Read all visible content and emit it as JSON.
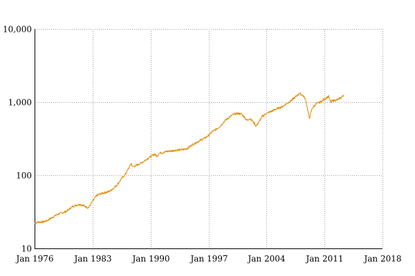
{
  "chart_data": {
    "type": "line",
    "title": "",
    "xlabel": "",
    "ylabel": "",
    "x_scale": "time",
    "y_scale": "log",
    "xlim": [
      "1976-01",
      "2018-01"
    ],
    "ylim": [
      10,
      10000
    ],
    "grid": true,
    "legend": "none",
    "x_ticks": [
      "Jan 1976",
      "Jan 1983",
      "Jan 1990",
      "Jan 1997",
      "Jan 2004",
      "Jan 2011",
      "Jan 2018"
    ],
    "y_ticks": [
      "10",
      "100",
      "1,000",
      "10,000"
    ],
    "y_tick_values": [
      10,
      100,
      1000,
      10000
    ],
    "line_color": "#e08b00",
    "series": [
      {
        "x": [
          "1976-01",
          "1976-07",
          "1977-01",
          "1977-07",
          "1978-01",
          "1978-07",
          "1979-01",
          "1979-07",
          "1980-01",
          "1980-07",
          "1981-01",
          "1981-07",
          "1982-01",
          "1982-07",
          "1983-01",
          "1983-07",
          "1984-01",
          "1984-07",
          "1985-01",
          "1985-07",
          "1986-01",
          "1986-07",
          "1987-01",
          "1987-09",
          "1987-11",
          "1988-07",
          "1989-01",
          "1989-07",
          "1990-01",
          "1990-07",
          "1990-10",
          "1991-01",
          "1991-07",
          "1992-01",
          "1992-07",
          "1993-01",
          "1993-07",
          "1994-01",
          "1994-07",
          "1995-01",
          "1995-07",
          "1996-01",
          "1996-07",
          "1997-01",
          "1997-07",
          "1998-01",
          "1998-07",
          "1998-10",
          "1999-01",
          "1999-07",
          "2000-01",
          "2000-07",
          "2001-01",
          "2001-09",
          "2002-01",
          "2002-07",
          "2002-10",
          "2003-01",
          "2003-07",
          "2004-01",
          "2004-07",
          "2005-01",
          "2005-07",
          "2006-01",
          "2006-07",
          "2007-01",
          "2007-10",
          "2008-01",
          "2008-07",
          "2008-10",
          "2009-03",
          "2009-07",
          "2010-01",
          "2010-07",
          "2011-01",
          "2011-07",
          "2011-10",
          "2012-01",
          "2012-07",
          "2013-01",
          "2013-05"
        ],
        "values": [
          22,
          23,
          23,
          24,
          26,
          28,
          30,
          31,
          33,
          37,
          39,
          40,
          38,
          36,
          44,
          53,
          56,
          58,
          60,
          66,
          75,
          90,
          105,
          145,
          130,
          140,
          150,
          165,
          180,
          195,
          180,
          200,
          205,
          212,
          215,
          220,
          222,
          225,
          235,
          260,
          280,
          300,
          320,
          350,
          400,
          430,
          480,
          520,
          560,
          620,
          680,
          700,
          690,
          560,
          600,
          520,
          470,
          520,
          640,
          700,
          740,
          790,
          830,
          880,
          970,
          1050,
          1250,
          1320,
          1200,
          1050,
          600,
          820,
          950,
          1000,
          1100,
          1200,
          1000,
          1050,
          1070,
          1150,
          1250
        ]
      }
    ]
  }
}
